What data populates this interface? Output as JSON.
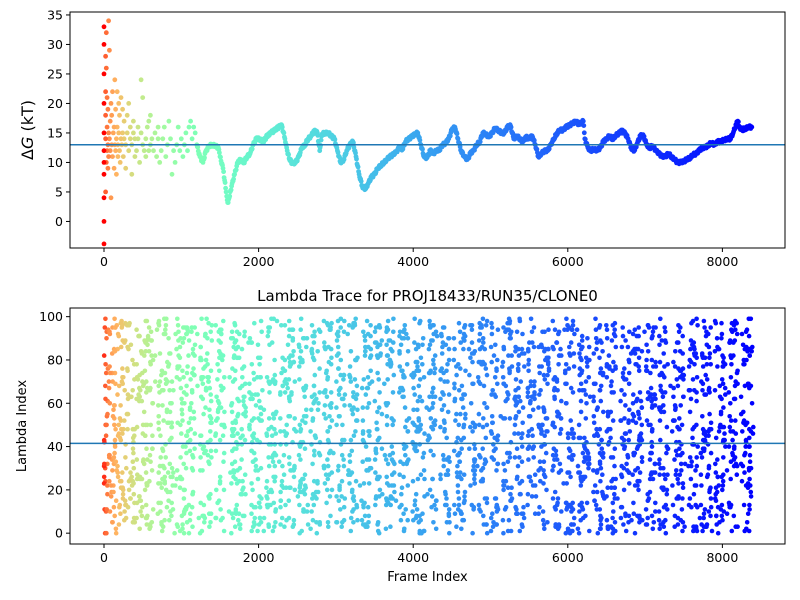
{
  "chart_data": [
    {
      "type": "scatter",
      "title": "",
      "xlabel": "",
      "ylabel_symbol": "Δ",
      "ylabel_var": "G",
      "ylabel_unit": " (kT)",
      "xlim": [
        -440,
        8810
      ],
      "ylim": [
        -4.5,
        35.5
      ],
      "xticks": [
        0,
        2000,
        4000,
        6000,
        8000
      ],
      "yticks": [
        0,
        5,
        10,
        15,
        20,
        25,
        30,
        35
      ],
      "hline": 13.0,
      "hline_color": "#1f77b4",
      "colormap": "rainbow",
      "x_max": 8400,
      "points": [
        [
          0,
          -3.8
        ],
        [
          0,
          0
        ],
        [
          0,
          4
        ],
        [
          0,
          8
        ],
        [
          0,
          10
        ],
        [
          0,
          12
        ],
        [
          0,
          15
        ],
        [
          0,
          20
        ],
        [
          0,
          25
        ],
        [
          0,
          30
        ],
        [
          0,
          33
        ],
        [
          20,
          5
        ],
        [
          20,
          14
        ],
        [
          20,
          18
        ],
        [
          20,
          22
        ],
        [
          20,
          28
        ],
        [
          30,
          10
        ],
        [
          30,
          26
        ],
        [
          30,
          32
        ],
        [
          40,
          12
        ],
        [
          40,
          16
        ],
        [
          40,
          21
        ],
        [
          50,
          9
        ],
        [
          50,
          13
        ],
        [
          50,
          19
        ],
        [
          60,
          11
        ],
        [
          60,
          15
        ],
        [
          60,
          34
        ],
        [
          70,
          14
        ],
        [
          70,
          29
        ],
        [
          80,
          12
        ],
        [
          80,
          17
        ],
        [
          90,
          4
        ],
        [
          90,
          20
        ],
        [
          100,
          13
        ],
        [
          100,
          18
        ],
        [
          110,
          11
        ],
        [
          110,
          22
        ],
        [
          120,
          15
        ],
        [
          130,
          9
        ],
        [
          130,
          16
        ],
        [
          140,
          13
        ],
        [
          140,
          24
        ],
        [
          150,
          12
        ],
        [
          150,
          19
        ],
        [
          160,
          8
        ],
        [
          160,
          14
        ],
        [
          170,
          16
        ],
        [
          170,
          22
        ],
        [
          180,
          11
        ],
        [
          180,
          13
        ],
        [
          190,
          15
        ],
        [
          190,
          20
        ],
        [
          200,
          12
        ],
        [
          200,
          18
        ],
        [
          210,
          10
        ],
        [
          220,
          14
        ],
        [
          220,
          21
        ],
        [
          230,
          13
        ],
        [
          240,
          15
        ],
        [
          240,
          19
        ],
        [
          250,
          11
        ],
        [
          260,
          14
        ],
        [
          260,
          17
        ],
        [
          280,
          9
        ],
        [
          280,
          13
        ],
        [
          300,
          15
        ],
        [
          300,
          18
        ],
        [
          320,
          12
        ],
        [
          320,
          20
        ],
        [
          340,
          14
        ],
        [
          340,
          16
        ],
        [
          360,
          8
        ],
        [
          360,
          13
        ],
        [
          380,
          15
        ],
        [
          380,
          17
        ],
        [
          400,
          11
        ],
        [
          400,
          14
        ],
        [
          420,
          12
        ],
        [
          440,
          14
        ],
        [
          440,
          16
        ],
        [
          460,
          10
        ],
        [
          480,
          15
        ],
        [
          480,
          24
        ],
        [
          500,
          13
        ],
        [
          500,
          21
        ],
        [
          520,
          12
        ],
        [
          540,
          11
        ],
        [
          540,
          14
        ],
        [
          560,
          16
        ],
        [
          580,
          12
        ],
        [
          580,
          17
        ],
        [
          600,
          13
        ],
        [
          600,
          18
        ],
        [
          620,
          14
        ],
        [
          640,
          12
        ],
        [
          660,
          15
        ],
        [
          680,
          11
        ],
        [
          700,
          14
        ],
        [
          700,
          16
        ],
        [
          720,
          10
        ],
        [
          740,
          12
        ],
        [
          760,
          14
        ],
        [
          780,
          16
        ],
        [
          800,
          11
        ],
        [
          820,
          13
        ],
        [
          840,
          17
        ],
        [
          860,
          14
        ],
        [
          880,
          8
        ],
        [
          900,
          12
        ],
        [
          920,
          10
        ],
        [
          940,
          13
        ],
        [
          960,
          16
        ],
        [
          980,
          12
        ],
        [
          1000,
          14
        ],
        [
          1020,
          11
        ],
        [
          1040,
          13
        ],
        [
          1060,
          15
        ],
        [
          1080,
          12
        ],
        [
          1100,
          16
        ],
        [
          1120,
          17
        ],
        [
          1140,
          14
        ],
        [
          1160,
          16
        ],
        [
          1180,
          15
        ],
        [
          1200,
          13
        ],
        [
          1240,
          11
        ],
        [
          1280,
          10
        ],
        [
          1320,
          12
        ],
        [
          1360,
          12.8
        ],
        [
          1400,
          13
        ],
        [
          1440,
          12.8
        ],
        [
          1480,
          12.5
        ],
        [
          1500,
          11
        ],
        [
          1540,
          9
        ],
        [
          1580,
          5
        ],
        [
          1600,
          3.2
        ],
        [
          1620,
          4
        ],
        [
          1650,
          6
        ],
        [
          1690,
          8
        ],
        [
          1730,
          10
        ],
        [
          1770,
          10.5
        ],
        [
          1810,
          10
        ],
        [
          1850,
          11
        ],
        [
          1890,
          11.5
        ],
        [
          1930,
          13
        ],
        [
          1970,
          14
        ],
        [
          2010,
          14
        ],
        [
          2060,
          13.5
        ],
        [
          2110,
          14.5
        ],
        [
          2160,
          15
        ],
        [
          2210,
          15.5
        ],
        [
          2260,
          16
        ],
        [
          2300,
          16.3
        ],
        [
          2340,
          14
        ],
        [
          2370,
          12
        ],
        [
          2400,
          10.5
        ],
        [
          2440,
          9.8
        ],
        [
          2480,
          10
        ],
        [
          2520,
          11
        ],
        [
          2560,
          12.5
        ],
        [
          2600,
          13
        ],
        [
          2640,
          14
        ],
        [
          2680,
          14.5
        ],
        [
          2720,
          15.3
        ],
        [
          2760,
          15
        ],
        [
          2790,
          12
        ],
        [
          2820,
          14.8
        ],
        [
          2860,
          15
        ],
        [
          2900,
          15
        ],
        [
          2940,
          14.5
        ],
        [
          2980,
          14
        ],
        [
          3020,
          12
        ],
        [
          3060,
          10
        ],
        [
          3100,
          10.5
        ],
        [
          3140,
          12
        ],
        [
          3180,
          13
        ],
        [
          3220,
          13.5
        ],
        [
          3260,
          11
        ],
        [
          3300,
          8
        ],
        [
          3340,
          6
        ],
        [
          3380,
          5.5
        ],
        [
          3420,
          6.5
        ],
        [
          3460,
          7.5
        ],
        [
          3500,
          8
        ],
        [
          3540,
          9
        ],
        [
          3580,
          9.5
        ],
        [
          3620,
          10
        ],
        [
          3660,
          10.5
        ],
        [
          3700,
          11
        ],
        [
          3740,
          11.3
        ],
        [
          3780,
          11.8
        ],
        [
          3820,
          12.5
        ],
        [
          3860,
          12.3
        ],
        [
          3900,
          13.5
        ],
        [
          3940,
          14
        ],
        [
          3980,
          14.3
        ],
        [
          4020,
          14.8
        ],
        [
          4060,
          15
        ],
        [
          4100,
          13
        ],
        [
          4140,
          11
        ],
        [
          4180,
          10.8
        ],
        [
          4220,
          12
        ],
        [
          4260,
          11.5
        ],
        [
          4300,
          12
        ],
        [
          4340,
          12.2
        ],
        [
          4380,
          13
        ],
        [
          4420,
          13.3
        ],
        [
          4460,
          14
        ],
        [
          4500,
          15.5
        ],
        [
          4540,
          16
        ],
        [
          4580,
          14
        ],
        [
          4620,
          12
        ],
        [
          4660,
          11
        ],
        [
          4700,
          10.5
        ],
        [
          4740,
          11.5
        ],
        [
          4780,
          12
        ],
        [
          4820,
          13
        ],
        [
          4860,
          13.5
        ],
        [
          4900,
          15
        ],
        [
          4940,
          14.8
        ],
        [
          4980,
          14.3
        ],
        [
          5020,
          15
        ],
        [
          5060,
          15.8
        ],
        [
          5100,
          15.5
        ],
        [
          5140,
          15
        ],
        [
          5180,
          15
        ],
        [
          5220,
          16
        ],
        [
          5260,
          16.2
        ],
        [
          5300,
          14
        ],
        [
          5340,
          14.5
        ],
        [
          5380,
          14
        ],
        [
          5420,
          13.5
        ],
        [
          5460,
          14.3
        ],
        [
          5500,
          14
        ],
        [
          5540,
          14.5
        ],
        [
          5580,
          13
        ],
        [
          5620,
          11
        ],
        [
          5660,
          11.5
        ],
        [
          5700,
          12
        ],
        [
          5740,
          12
        ],
        [
          5780,
          13
        ],
        [
          5820,
          14
        ],
        [
          5860,
          15
        ],
        [
          5900,
          15.5
        ],
        [
          5940,
          15.5
        ],
        [
          5980,
          16
        ],
        [
          6020,
          16.3
        ],
        [
          6060,
          16.6
        ],
        [
          6100,
          17
        ],
        [
          6140,
          16.5
        ],
        [
          6180,
          16.8
        ],
        [
          6200,
          17
        ],
        [
          6220,
          14
        ],
        [
          6260,
          12.5
        ],
        [
          6300,
          12
        ],
        [
          6340,
          12.3
        ],
        [
          6380,
          12
        ],
        [
          6420,
          12.5
        ],
        [
          6460,
          13.5
        ],
        [
          6500,
          14
        ],
        [
          6540,
          14.5
        ],
        [
          6580,
          14
        ],
        [
          6620,
          14.5
        ],
        [
          6660,
          15
        ],
        [
          6700,
          15.3
        ],
        [
          6740,
          15
        ],
        [
          6780,
          14
        ],
        [
          6820,
          12.5
        ],
        [
          6860,
          12
        ],
        [
          6900,
          13.3
        ],
        [
          6940,
          14.5
        ],
        [
          6980,
          14.5
        ],
        [
          7020,
          13
        ],
        [
          7060,
          12.5
        ],
        [
          7100,
          12.8
        ],
        [
          7140,
          12
        ],
        [
          7180,
          11.5
        ],
        [
          7220,
          11
        ],
        [
          7260,
          11
        ],
        [
          7300,
          11.5
        ],
        [
          7340,
          11
        ],
        [
          7380,
          10.5
        ],
        [
          7420,
          10
        ],
        [
          7460,
          10
        ],
        [
          7500,
          10.2
        ],
        [
          7540,
          10.5
        ],
        [
          7580,
          10.8
        ],
        [
          7620,
          11.3
        ],
        [
          7660,
          11.5
        ],
        [
          7700,
          12
        ],
        [
          7740,
          12.5
        ],
        [
          7780,
          12.5
        ],
        [
          7820,
          13
        ],
        [
          7860,
          13.3
        ],
        [
          7900,
          13
        ],
        [
          7940,
          13.5
        ],
        [
          7980,
          13.5
        ],
        [
          8020,
          13.8
        ],
        [
          8060,
          14
        ],
        [
          8100,
          14
        ],
        [
          8140,
          15
        ],
        [
          8180,
          16.5
        ],
        [
          8200,
          17
        ],
        [
          8220,
          16
        ],
        [
          8260,
          15.5
        ],
        [
          8300,
          15.8
        ],
        [
          8340,
          16
        ],
        [
          8380,
          16
        ]
      ]
    },
    {
      "type": "scatter",
      "title": "Lambda Trace for PROJ18433/RUN35/CLONE0",
      "xlabel": "Frame Index",
      "ylabel": "Lambda Index",
      "xlim": [
        -440,
        8810
      ],
      "ylim": [
        -5,
        104
      ],
      "xticks": [
        0,
        2000,
        4000,
        6000,
        8000
      ],
      "yticks": [
        0,
        20,
        40,
        60,
        80,
        100
      ],
      "hline": 41.5,
      "hline_color": "#1f77b4",
      "colormap": "rainbow",
      "x_max": 8400,
      "lambda_max": 99,
      "bands": [
        [
          0,
          400
        ],
        [
          420,
          640
        ],
        [
          700,
          900
        ],
        [
          940,
          1180
        ],
        [
          1240,
          1400
        ],
        [
          1440,
          1560
        ],
        [
          1640,
          1840
        ],
        [
          1880,
          2040
        ],
        [
          2100,
          2230
        ],
        [
          2280,
          2470
        ],
        [
          2520,
          2640
        ],
        [
          2680,
          2800
        ],
        [
          2840,
          2950
        ],
        [
          3000,
          3120
        ],
        [
          3160,
          3280
        ],
        [
          3340,
          3460
        ],
        [
          3500,
          3600
        ],
        [
          3640,
          3760
        ],
        [
          3820,
          3940
        ],
        [
          3990,
          4150
        ],
        [
          4190,
          4300
        ],
        [
          4350,
          4470
        ],
        [
          4520,
          4680
        ],
        [
          4720,
          4800
        ],
        [
          4840,
          4960
        ],
        [
          5000,
          5100
        ],
        [
          5160,
          5280
        ],
        [
          5310,
          5440
        ],
        [
          5480,
          5580
        ],
        [
          5620,
          5760
        ],
        [
          5800,
          5920
        ],
        [
          5960,
          6090
        ],
        [
          6130,
          6280
        ],
        [
          6320,
          6460
        ],
        [
          6500,
          6630
        ],
        [
          6680,
          6800
        ],
        [
          6840,
          6970
        ],
        [
          7010,
          7140
        ],
        [
          7180,
          7300
        ],
        [
          7350,
          7500
        ],
        [
          7560,
          7680
        ],
        [
          7720,
          7860
        ],
        [
          7900,
          8040
        ],
        [
          8080,
          8200
        ],
        [
          8240,
          8400
        ]
      ],
      "band_density": 0.82
    }
  ]
}
